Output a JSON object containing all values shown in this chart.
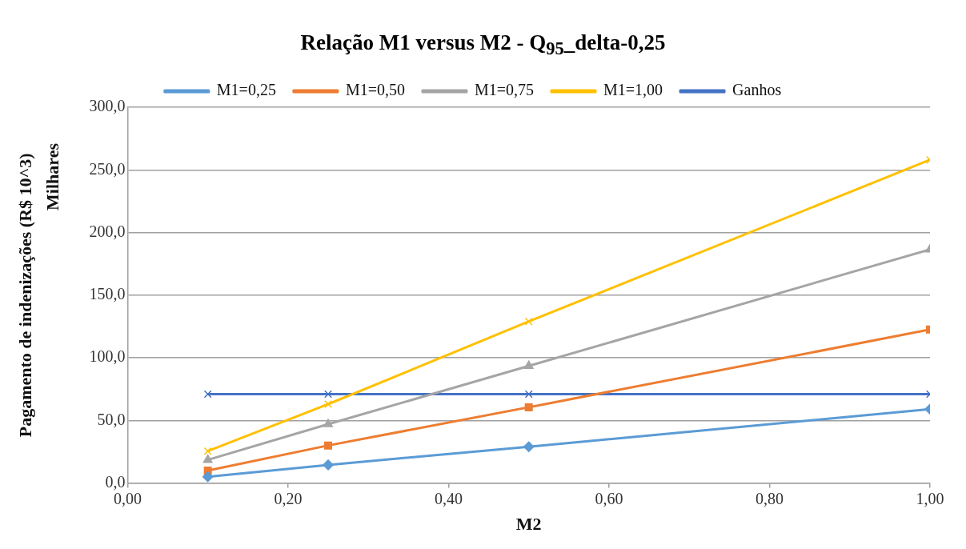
{
  "chart_data": {
    "type": "line",
    "title": "Relação M1 versus M2 - Q$_{95}$_delta-0,25",
    "xlabel": "M2",
    "ylabel": "Pagamento de indenizações (R$ 10^3)",
    "annotations": [
      "Milhares"
    ],
    "x": [
      0.1,
      0.25,
      0.5,
      1.0
    ],
    "xlim": [
      0,
      1
    ],
    "xticks": [
      {
        "value": 0,
        "label": "0,00"
      },
      {
        "value": 0.2,
        "label": "0,20"
      },
      {
        "value": 0.4,
        "label": "0,40"
      },
      {
        "value": 0.6,
        "label": "0,60"
      },
      {
        "value": 0.8,
        "label": "0,80"
      },
      {
        "value": 1,
        "label": "1,00"
      }
    ],
    "ylim": [
      0,
      300
    ],
    "yticks": [
      {
        "value": 0,
        "label": "0,0"
      },
      {
        "value": 50,
        "label": "50,0"
      },
      {
        "value": 100,
        "label": "100,0"
      },
      {
        "value": 150,
        "label": "150,0"
      },
      {
        "value": 200,
        "label": "200,0"
      },
      {
        "value": 250,
        "label": "250,0"
      },
      {
        "value": 300,
        "label": "300,0"
      }
    ],
    "grid": "y",
    "legend": "top",
    "line_style": "solid",
    "series": [
      {
        "name": "M1=0,25",
        "color": "#5b9bd5",
        "marker": "diamond",
        "values": [
          5,
          14.5,
          29,
          59
        ]
      },
      {
        "name": "M1=0,50",
        "color": "#ed7d31",
        "marker": "square",
        "values": [
          10,
          30,
          60.5,
          122.5
        ]
      },
      {
        "name": "M1=0,75",
        "color": "#a5a5a5",
        "marker": "triangle",
        "values": [
          18.5,
          47,
          93.5,
          186.5
        ]
      },
      {
        "name": "M1=1,00",
        "color": "#ffc000",
        "marker": "cross",
        "values": [
          25.5,
          63,
          129,
          258
        ]
      },
      {
        "name": "Ganhos",
        "color": "#4472c4",
        "marker": "cross",
        "values": [
          71,
          71,
          71,
          71
        ]
      }
    ]
  }
}
